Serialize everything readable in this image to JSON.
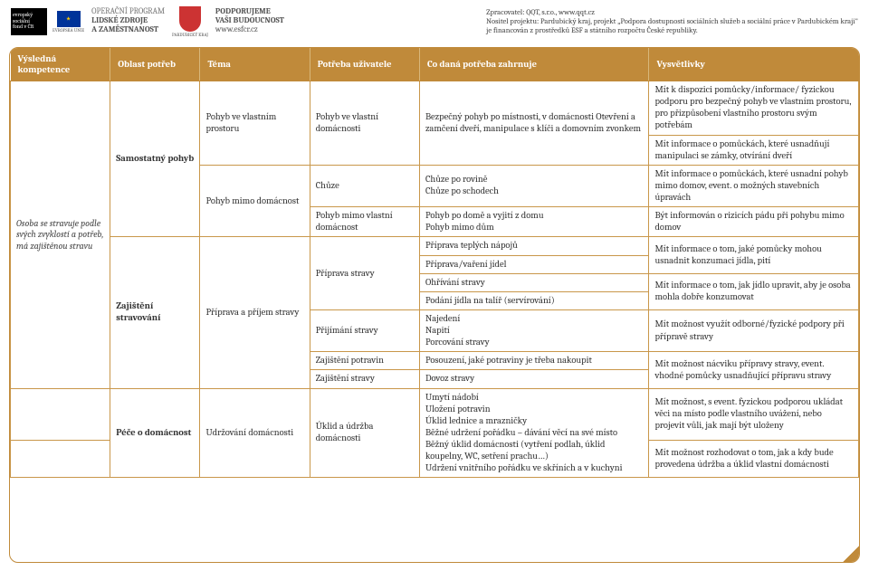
{
  "header": {
    "esf_lines": [
      "evropský",
      "sociální",
      "fond v ČR"
    ],
    "eu_label": "EVROPSKÁ UNIE",
    "op_line1": "OPERAČNÍ PROGRAM",
    "op_line2": "LIDSKÉ ZDROJE",
    "op_line3": "A ZAMĚSTNANOST",
    "pk_label": "PARDUBICKÝ KRAJ",
    "support1": "PODPORUJEME",
    "support2": "VAŠI BUDOUCNOST",
    "support_url": "www.esfcr.cz",
    "right1": "Zpracovatel: QQT, s.r.o., www.qqt.cz",
    "right2": "Nositel projektu: Pardubický kraj, projekt „Podpora dostupnosti sociálních služeb a sociální práce v Pardubickém kraji\"",
    "right3": "je financován z prostředků ESF a státního rozpočtu České republiky."
  },
  "table": {
    "headers": {
      "c1": "Výsledná kompetence",
      "c2": "Oblast potřeb",
      "c3": "Téma",
      "c4": "Potřeba uživatele",
      "c5": "Co daná potřeba zahrnuje",
      "c6": "Vysvětlivky"
    },
    "kompetence": "Osoba se stravuje podle svých zvyklostí a potřeb, má zajištěnou stravu",
    "oblast1": "Samostatný pohyb",
    "tema1": "Pohyb ve vlastním prostoru",
    "potreba1": "Pohyb ve vlastní domácnosti",
    "zahrn1": "Bezpečný pohyb po místnosti, v domácnosti Otevření a zamčení dveří, manipulace s klíči a domovním zvonkem",
    "vysv1": "Mít k dispozici pomůcky/informace/ fyzickou podporu pro bezpečný pohyb ve vlastním prostoru, pro přizpůsobení vlastního prostoru svým potřebám",
    "vysv1b": "Mít informace o pomůckách, které usnadňují manipulaci se zámky, otvírání dveří",
    "tema2": "Pohyb mimo domácnost",
    "potreba2a": "Chůze",
    "zahrn2a": "Chůze po rovině\nChůze po schodech",
    "vysv2a": "Mít informace o pomůckách, které usnadní pohyb mimo domov, event. o možných stavebních úpravách",
    "potreba2b": "Pohyb mimo vlastní domácnost",
    "zahrn2b": "Pohyb po domě a vyjití z domu\nPohyb mimo dům",
    "vysv2b": "Být informován o rizicích pádu při pohybu mimo domov",
    "oblast2": "Zajištění stravování",
    "tema3": "Příprava a příjem stravy",
    "potreba3a": "Příprava stravy",
    "zahrn3a1": "Příprava teplých nápojů",
    "zahrn3a2": "Příprava/vaření jídel",
    "zahrn3a3": "Ohřívání stravy",
    "zahrn3a4": "Podání jídla na talíř (servírování)",
    "vysv3a": "Mít informace o tom, jaké pomůcky mohou usnadnit konzumaci jídla, pití",
    "vysv3ab": "Mít informace o tom, jak jídlo upravit, aby je osoba mohla dobře konzumovat",
    "potreba3b": "Přijímání stravy",
    "zahrn3b": "Najedení\nNapití\nPorcování stravy",
    "vysv3b": "Mít možnost využít odborné/fyzické podpory při přípravě stravy",
    "potreba3c": "Zajištění potravin",
    "zahrn3c": "Posouzení, jaké potraviny je třeba nakoupit",
    "potreba3d": "Zajištění stravy",
    "zahrn3d": "Dovoz stravy",
    "vysv3cd": "Mít možnost nácviku přípravy stravy, event. vhodné pomůcky usnadňující přípravu stravy",
    "oblast3": "Péče o domácnost",
    "tema4": "Udržování domácnosti",
    "potreba4": "Úklid a údržba domácnosti",
    "zahrn4": "Umytí nádobí\nUložení potravin\nÚklid lednice a mrazničky\nBěžné udržení pořádku – dávání věcí na své místo\nBěžný úklid domácnosti (vytření podlah, úklid koupelny, WC, setření prachu…)\nUdržení vnitřního pořádku ve skříních a v kuchyni",
    "vysv4a": "Mít možnost, s event. fyzickou podporou ukládat věci na místo podle vlastního uvážení, nebo projevit vůli, jak mají být uloženy",
    "vysv4b": "Mít možnost rozhodovat o tom, jak a kdy bude provedena údržba a úklid vlastní domácnosti"
  }
}
